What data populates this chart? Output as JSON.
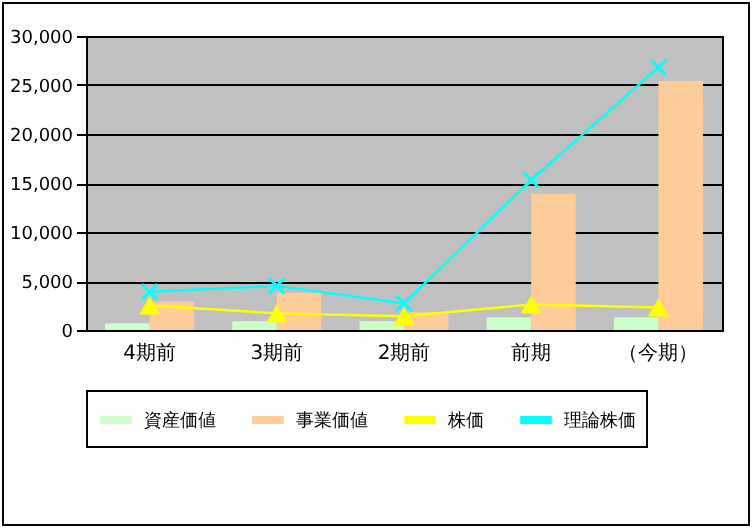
{
  "chart_data": {
    "type": "bar",
    "categories": [
      "4期前",
      "3期前",
      "2期前",
      "前期",
      "（今期）"
    ],
    "series": [
      {
        "name": "資産価値",
        "color": "#ccffcc",
        "values": [
          700,
          900,
          900,
          1300,
          1300
        ]
      },
      {
        "name": "事業価値",
        "color": "#ffcc99",
        "values": [
          2900,
          3800,
          1800,
          13900,
          25400
        ]
      },
      {
        "name": "株価",
        "type": "line",
        "marker": "triangle",
        "color": "#ffff00",
        "values": [
          2500,
          1700,
          1400,
          2600,
          2300
        ]
      },
      {
        "name": "理論株価",
        "type": "line",
        "marker": "cross",
        "color": "#00ffff",
        "values": [
          3900,
          4500,
          2700,
          15300,
          26800
        ]
      }
    ],
    "ylim": [
      0,
      30000
    ],
    "yticks": [
      0,
      {
        "value": 5000,
        "label": "5,000"
      },
      {
        "value": 10000,
        "label": "10,000"
      },
      {
        "value": 15000,
        "label": "15,000"
      },
      {
        "value": 20000,
        "label": "20,000"
      },
      {
        "value": 25000,
        "label": "25,000"
      },
      {
        "value": 30000,
        "label": "30,000"
      }
    ],
    "grid": "y",
    "legend": "bottom"
  }
}
